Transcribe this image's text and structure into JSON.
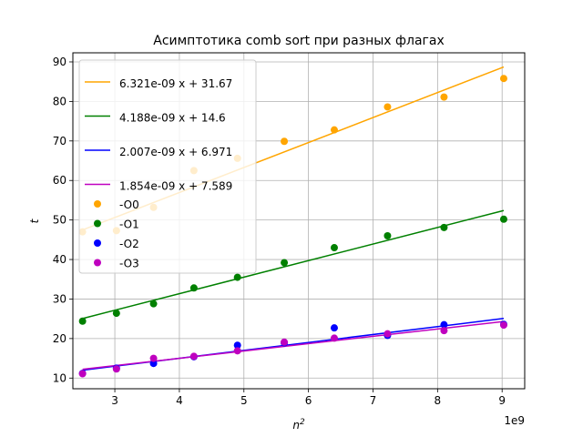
{
  "chart_data": {
    "type": "scatter",
    "title": "Асимптотика comb sort при разных флагах",
    "xlabel": "n",
    "xlabel_sup": "2",
    "ylabel": "t",
    "x_offset_label": "1e9",
    "x_scale": 1000000000,
    "xlim": [
      2.35,
      9.35
    ],
    "ylim": [
      7.3,
      92.3
    ],
    "xticks": [
      3,
      4,
      5,
      6,
      7,
      8,
      9
    ],
    "yticks": [
      10,
      20,
      30,
      40,
      50,
      60,
      70,
      80,
      90
    ],
    "grid": true,
    "legend_position": "upper-left",
    "x": [
      2.5,
      3.025,
      3.6,
      4.225,
      4.9,
      5.625,
      6.4,
      7.225,
      8.1,
      9.025
    ],
    "fits": [
      {
        "label": "6.321e-09 x + 31.67",
        "slope": 6.321e-09,
        "intercept": 31.67,
        "color": "#ffa500"
      },
      {
        "label": "4.188e-09 x + 14.6",
        "slope": 4.188e-09,
        "intercept": 14.6,
        "color": "#008000"
      },
      {
        "label": "2.007e-09 x + 6.971",
        "slope": 2.007e-09,
        "intercept": 6.971,
        "color": "#0000ff"
      },
      {
        "label": "1.854e-09 x + 7.589",
        "slope": 1.854e-09,
        "intercept": 7.589,
        "color": "#bf00bf"
      }
    ],
    "series": [
      {
        "name": "-O0",
        "color": "#ffa500",
        "values": [
          47.0,
          47.3,
          53.2,
          62.5,
          65.6,
          69.9,
          72.8,
          78.6,
          81.1,
          85.8
        ]
      },
      {
        "name": "-O1",
        "color": "#008000",
        "values": [
          24.4,
          26.4,
          28.8,
          32.8,
          35.5,
          39.2,
          43.0,
          46.0,
          48.1,
          50.2
        ]
      },
      {
        "name": "-O2",
        "color": "#0000ff",
        "values": [
          11.2,
          12.5,
          13.7,
          15.4,
          18.3,
          18.9,
          22.7,
          20.8,
          23.5,
          23.6
        ]
      },
      {
        "name": "-O3",
        "color": "#bf00bf",
        "values": [
          11.1,
          12.3,
          15.0,
          15.5,
          16.9,
          19.1,
          20.1,
          21.2,
          22.0,
          23.4
        ]
      }
    ]
  }
}
